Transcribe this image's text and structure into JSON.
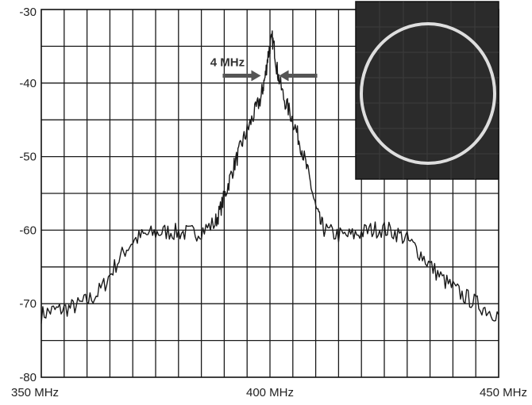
{
  "chart_data": {
    "type": "line",
    "title": "",
    "xlabel": "",
    "ylabel": "",
    "x_range": [
      350,
      450
    ],
    "y_range": [
      -80,
      -30
    ],
    "x_unit": "MHz",
    "grid": true,
    "x_ticks": [
      {
        "value": 350,
        "label": "350 MHz"
      },
      {
        "value": 400,
        "label": "400 MHz"
      },
      {
        "value": 450,
        "label": "450 MHz"
      }
    ],
    "y_ticks": [
      {
        "value": -30,
        "label": "-30"
      },
      {
        "value": -40,
        "label": "-40"
      },
      {
        "value": -50,
        "label": "-50"
      },
      {
        "value": -60,
        "label": "-60"
      },
      {
        "value": -70,
        "label": "-70"
      },
      {
        "value": -80,
        "label": "-80"
      }
    ],
    "series": [
      {
        "line_color": "#1a1a1a",
        "points": [
          [
            350,
            -71.5
          ],
          [
            352,
            -71.0
          ],
          [
            354,
            -70.8
          ],
          [
            356,
            -70.6
          ],
          [
            358,
            -70.2
          ],
          [
            360,
            -69.6
          ],
          [
            362,
            -68.8
          ],
          [
            364,
            -67.2
          ],
          [
            366,
            -65.0
          ],
          [
            368,
            -63.0
          ],
          [
            370,
            -61.5
          ],
          [
            372,
            -60.8
          ],
          [
            374,
            -60.5
          ],
          [
            376,
            -60.3
          ],
          [
            378,
            -60.2
          ],
          [
            380,
            -60.3
          ],
          [
            382,
            -60.4
          ],
          [
            384,
            -60.3
          ],
          [
            386,
            -59.8
          ],
          [
            388,
            -59.0
          ],
          [
            389,
            -57.5
          ],
          [
            390,
            -55.5
          ],
          [
            391,
            -53.5
          ],
          [
            392,
            -51.5
          ],
          [
            393,
            -49.8
          ],
          [
            394,
            -48.0
          ],
          [
            395,
            -46.5
          ],
          [
            396,
            -45.0
          ],
          [
            397,
            -43.5
          ],
          [
            398,
            -42.0
          ],
          [
            398.5,
            -40.5
          ],
          [
            399,
            -39.0
          ],
          [
            399.5,
            -36.5
          ],
          [
            400,
            -35.0
          ],
          [
            400.5,
            -34.0
          ],
          [
            401,
            -35.5
          ],
          [
            401.5,
            -38.0
          ],
          [
            402,
            -39.5
          ],
          [
            403,
            -42.0
          ],
          [
            404,
            -43.5
          ],
          [
            405,
            -45.0
          ],
          [
            406,
            -47.0
          ],
          [
            407,
            -49.0
          ],
          [
            408,
            -51.5
          ],
          [
            409,
            -54.0
          ],
          [
            410,
            -57.0
          ],
          [
            411,
            -59.0
          ],
          [
            412,
            -60.0
          ],
          [
            414,
            -60.5
          ],
          [
            416,
            -60.8
          ],
          [
            418,
            -60.7
          ],
          [
            420,
            -60.3
          ],
          [
            422,
            -60.0
          ],
          [
            424,
            -59.8
          ],
          [
            426,
            -60.0
          ],
          [
            428,
            -60.5
          ],
          [
            430,
            -61.3
          ],
          [
            432,
            -62.5
          ],
          [
            434,
            -64.0
          ],
          [
            436,
            -65.5
          ],
          [
            438,
            -66.8
          ],
          [
            440,
            -67.8
          ],
          [
            442,
            -68.8
          ],
          [
            444,
            -69.5
          ],
          [
            446,
            -70.3
          ],
          [
            448,
            -71.0
          ],
          [
            450,
            -71.5
          ]
        ]
      }
    ],
    "annotations": [
      {
        "label": "4 MHz",
        "center_x": 400,
        "half_width": 2,
        "y": -39
      }
    ],
    "inset": {
      "description": "circle",
      "background": "#2b2b2b",
      "ring_color": "#e8e8e8"
    }
  }
}
